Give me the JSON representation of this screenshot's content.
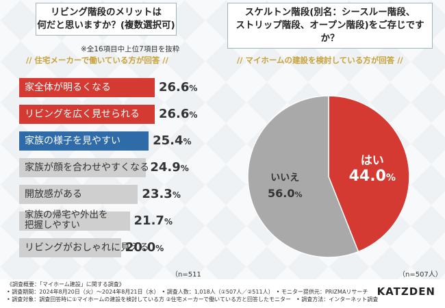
{
  "left": {
    "question": [
      "リビング階段のメリットは",
      "何だと思いますか？(複数選択可)"
    ],
    "note": "※全16項目中上位7項目を抜粋",
    "subtitle": "// 住宅メーカーで働いている方が回答 //",
    "n_label": "（n=511人）"
  },
  "right": {
    "question": [
      "スケルトン階段(別名：シースルー階段、",
      "ストリップ階段、オープン階段)をご存じですか？"
    ],
    "subtitle": "// マイホームの建設を検討している方が回答 //",
    "n_label": "（n=507人）"
  },
  "colors": {
    "red": "#d43a32",
    "blue": "#2e6ba8",
    "gray": "#cfcfcf",
    "pie_gray": "#a9a9a9"
  },
  "chart_data": [
    {
      "type": "bar",
      "orientation": "horizontal",
      "title": "リビング階段のメリットは何だと思いますか？(複数選択可)",
      "categories": [
        "家全体が明るくなる",
        "リビングを広く見せられる",
        "家族の様子を見やすい",
        "家族が顔を合わせやすくなる",
        "開放感がある",
        "家族の帰宅や外出を把握しやすい",
        "リビングがおしゃれに見える"
      ],
      "values": [
        26.6,
        26.6,
        25.4,
        24.9,
        23.3,
        21.7,
        20.0
      ],
      "value_labels": [
        "26.6",
        "26.6",
        "25.4",
        "24.9",
        "23.3",
        "21.7",
        "20.0"
      ],
      "unit": "%",
      "highlight": [
        "red",
        "red",
        "blue",
        "gray",
        "gray",
        "gray",
        "gray"
      ]
    },
    {
      "type": "pie",
      "title": "スケルトン階段(別名：シースルー階段、ストリップ階段、オープン階段)をご存じですか？",
      "labels": [
        "はい",
        "いいえ"
      ],
      "values": [
        44.0,
        56.0
      ],
      "value_labels": [
        "44.0",
        "56.0"
      ],
      "unit": "%"
    }
  ],
  "footer": {
    "lines": [
      "《調査概要：「マイホーム建設」に関する調査》",
      "• 調査期間：2024年8月20日（火）～2024年8月21日（水）　• 調査人数：1,018人（①507人／②511人）　• モニター提供元：PRIZMAリサーチ",
      "• 調査対象：調査回答時に①マイホームの建設を検討している方 ②住宅メーカーで働いている方と回答したモニター　• 調査方法：インターネット調査"
    ],
    "logo": "KATZDEN"
  }
}
